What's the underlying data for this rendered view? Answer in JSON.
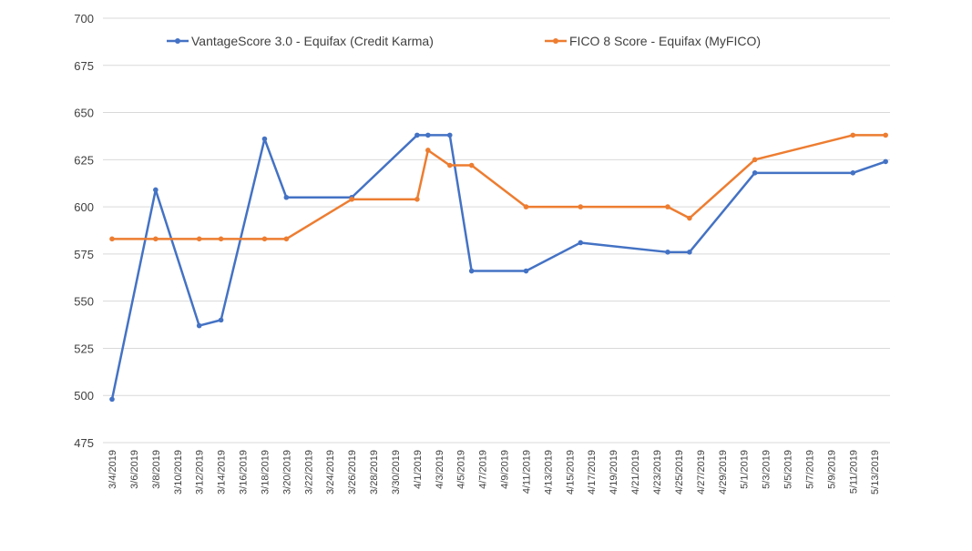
{
  "chart_data": {
    "type": "line",
    "title": "",
    "xlabel": "",
    "ylabel": "",
    "ylim": [
      475,
      700
    ],
    "yticks": [
      475,
      500,
      525,
      550,
      575,
      600,
      625,
      650,
      675,
      700
    ],
    "xlim": [
      "3/4/2019",
      "5/14/2019"
    ],
    "xtick_labels": [
      "3/4/2019",
      "3/6/2019",
      "3/8/2019",
      "3/10/2019",
      "3/12/2019",
      "3/14/2019",
      "3/16/2019",
      "3/18/2019",
      "3/20/2019",
      "3/22/2019",
      "3/24/2019",
      "3/26/2019",
      "3/28/2019",
      "3/30/2019",
      "4/1/2019",
      "4/3/2019",
      "4/5/2019",
      "4/7/2019",
      "4/9/2019",
      "4/11/2019",
      "4/13/2019",
      "4/15/2019",
      "4/17/2019",
      "4/19/2019",
      "4/21/2019",
      "4/23/2019",
      "4/25/2019",
      "4/27/2019",
      "4/29/2019",
      "5/1/2019",
      "5/3/2019",
      "5/5/2019",
      "5/7/2019",
      "5/9/2019",
      "5/11/2019",
      "5/13/2019"
    ],
    "grid": true,
    "legend_position": "top",
    "x": [
      "3/4/2019",
      "3/8/2019",
      "3/12/2019",
      "3/14/2019",
      "3/18/2019",
      "3/20/2019",
      "3/26/2019",
      "4/1/2019",
      "4/2/2019",
      "4/4/2019",
      "4/6/2019",
      "4/11/2019",
      "4/16/2019",
      "4/24/2019",
      "4/26/2019",
      "5/2/2019",
      "5/11/2019",
      "5/14/2019"
    ],
    "series": [
      {
        "name": "VantageScore 3.0 - Equifax (Credit Karma)",
        "color": "#4472c4",
        "values": [
          498,
          609,
          537,
          540,
          636,
          605,
          605,
          638,
          638,
          638,
          566,
          566,
          581,
          576,
          576,
          618,
          618,
          624
        ]
      },
      {
        "name": "FICO 8 Score - Equifax (MyFICO)",
        "color": "#ed7d31",
        "values": [
          583,
          583,
          583,
          583,
          583,
          583,
          604,
          604,
          630,
          622,
          622,
          600,
          600,
          600,
          594,
          625,
          638,
          638
        ]
      }
    ]
  }
}
